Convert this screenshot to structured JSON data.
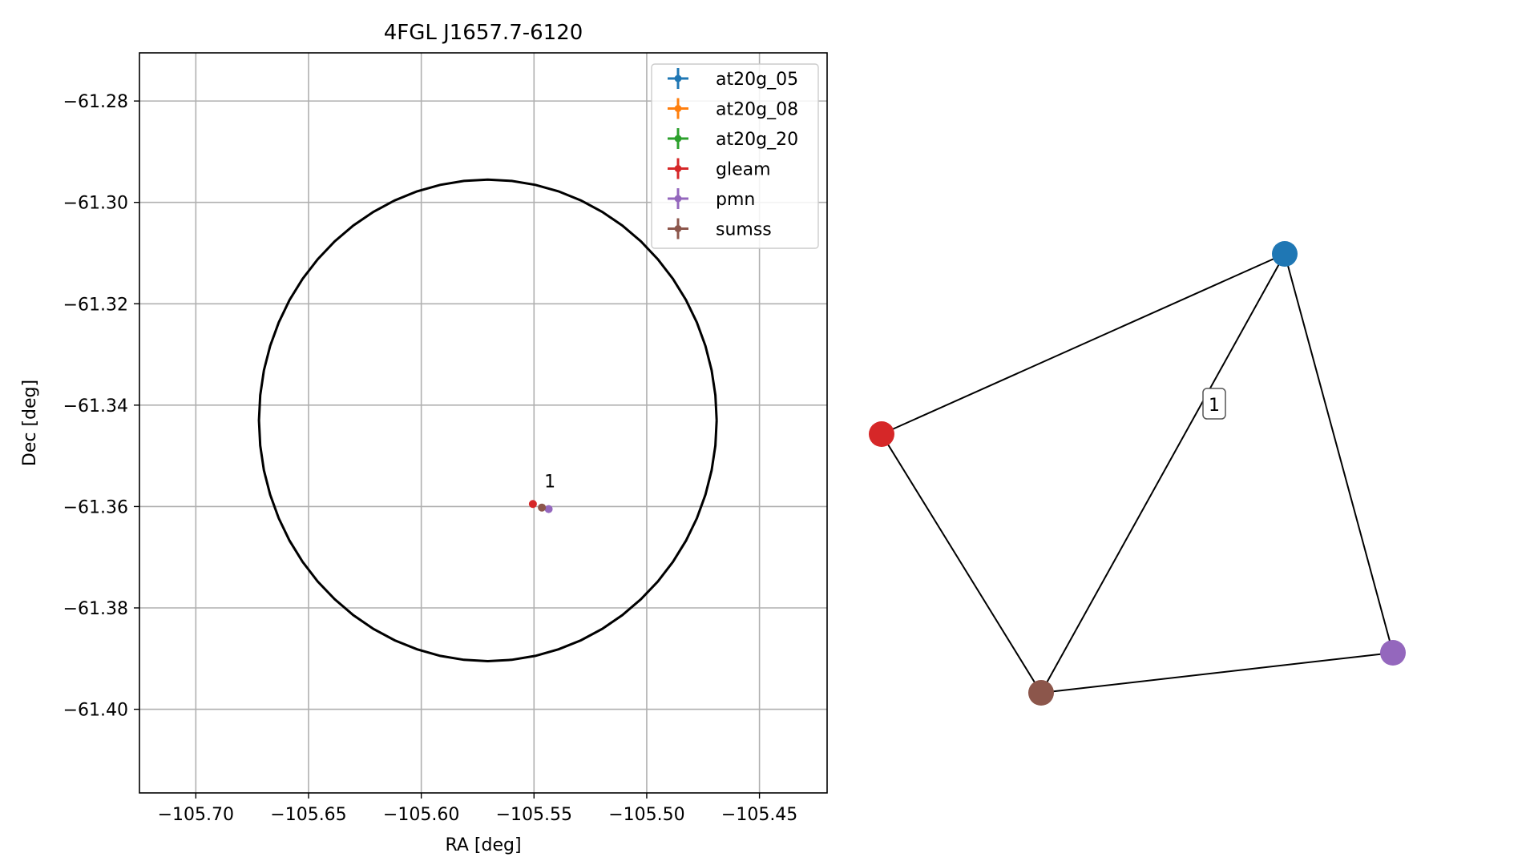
{
  "chart_data": [
    {
      "type": "scatter",
      "title": "4FGL J1657.7-6120",
      "xlabel": "RA [deg]",
      "ylabel": "Dec [deg]",
      "xlim": [
        -105.725,
        -105.42
      ],
      "ylim": [
        -61.4165,
        -61.2705
      ],
      "x_ticks": [
        -105.7,
        -105.65,
        -105.6,
        -105.55,
        -105.5,
        -105.45
      ],
      "x_tick_labels": [
        "−105.70",
        "−105.65",
        "−105.60",
        "−105.55",
        "−105.50",
        "−105.45"
      ],
      "y_ticks": [
        -61.28,
        -61.3,
        -61.32,
        -61.34,
        -61.36,
        -61.38,
        -61.4
      ],
      "y_tick_labels": [
        "−61.28",
        "−61.30",
        "−61.32",
        "−61.34",
        "−61.36",
        "−61.38",
        "−61.40"
      ],
      "grid": true,
      "legend_position": "top-right",
      "error_circle": {
        "center": [
          -105.5705,
          -61.343
        ],
        "radius_ra": 0.1015,
        "radius_dec": 0.0475
      },
      "series": [
        {
          "name": "at20g_05",
          "color": "#1f77b4",
          "points": []
        },
        {
          "name": "at20g_08",
          "color": "#ff7f0e",
          "points": []
        },
        {
          "name": "at20g_20",
          "color": "#2ca02c",
          "points": []
        },
        {
          "name": "gleam",
          "color": "#d62728",
          "points": [
            {
              "x": -105.5505,
              "y": -61.3595
            }
          ]
        },
        {
          "name": "pmn",
          "color": "#9467bd",
          "points": [
            {
              "x": -105.5435,
              "y": -61.3605
            }
          ]
        },
        {
          "name": "sumss",
          "color": "#8c564b",
          "points": [
            {
              "x": -105.5465,
              "y": -61.3602
            }
          ]
        }
      ],
      "annotations": [
        {
          "text": "1",
          "x": -105.5465,
          "y": -61.3575
        }
      ]
    },
    {
      "type": "network",
      "nodes": [
        {
          "id": "at20g_05",
          "color": "#1f77b4"
        },
        {
          "id": "gleam",
          "color": "#d62728"
        },
        {
          "id": "sumss",
          "color": "#8c564b"
        },
        {
          "id": "pmn",
          "color": "#9467bd"
        }
      ],
      "edges": [
        [
          "at20g_05",
          "gleam"
        ],
        [
          "at20g_05",
          "sumss"
        ],
        [
          "at20g_05",
          "pmn"
        ],
        [
          "gleam",
          "sumss"
        ],
        [
          "sumss",
          "pmn"
        ]
      ],
      "cluster_label": "1"
    }
  ]
}
